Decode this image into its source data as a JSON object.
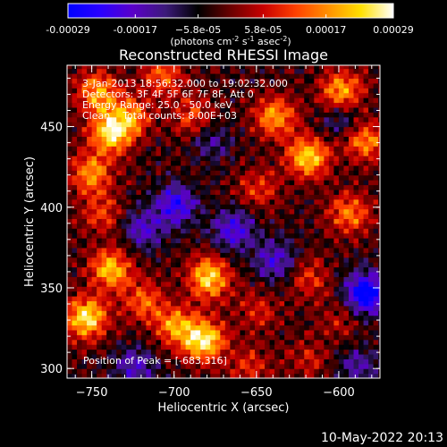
{
  "chart_data": {
    "type": "heatmap",
    "title": "Reconstructed RHESSI Image",
    "xlabel": "Heliocentric X (arcsec)",
    "ylabel": "Heliocentric Y (arcsec)",
    "xlim": [
      -765,
      -575
    ],
    "ylim": [
      294,
      488
    ],
    "x_ticks": [
      -750,
      -700,
      -650,
      -600
    ],
    "y_ticks": [
      300,
      350,
      400,
      450
    ],
    "colorbar": {
      "range": [
        -0.00029,
        0.00029
      ],
      "ticks": [
        -0.00029,
        -0.00017,
        -5.8e-05,
        5.8e-05,
        0.00017,
        0.00029
      ],
      "tick_labels": [
        "-0.00029",
        "-0.00017",
        "−5.8e-05",
        "5.8e-05",
        "0.00017",
        "0.00029"
      ],
      "unit_label_pre": "(photons cm",
      "unit_exp1": "-2",
      "unit_label_mid": " s",
      "unit_exp2": "-1",
      "unit_label_mid2": " asec",
      "unit_exp3": "-2",
      "unit_label_post": ")",
      "colormap": [
        "#0000ff",
        "#2a00ff",
        "#5a00c8",
        "#3c1a7a",
        "#000000",
        "#6a0000",
        "#c80000",
        "#ff4000",
        "#ff9000",
        "#ffe000",
        "#ffffff"
      ]
    },
    "annotations": {
      "line1": "3-Jan-2013 18:56:32.000 to 19:02:32.000",
      "line2": "Detectors: 3F 4F 5F 6F 7F 8F, Att 0",
      "line3": "Energy Range: 25.0 - 50.0 keV",
      "line4": "Clean    Total counts: 8.00E+03",
      "peak": "Position of Peak = [-683,316]"
    },
    "hotspots": [
      {
        "x": -748,
        "y": 470,
        "v": 0.00022
      },
      {
        "x": -740,
        "y": 445,
        "v": 0.00027
      },
      {
        "x": -752,
        "y": 420,
        "v": 0.0002
      },
      {
        "x": -728,
        "y": 455,
        "v": 0.00018
      },
      {
        "x": -708,
        "y": 480,
        "v": 0.00016
      },
      {
        "x": -690,
        "y": 455,
        "v": 0.00014
      },
      {
        "x": -640,
        "y": 455,
        "v": 0.00021
      },
      {
        "x": -620,
        "y": 430,
        "v": 0.00026
      },
      {
        "x": -600,
        "y": 470,
        "v": 0.00024
      },
      {
        "x": -585,
        "y": 440,
        "v": 0.0002
      },
      {
        "x": -650,
        "y": 410,
        "v": 0.00012
      },
      {
        "x": -595,
        "y": 395,
        "v": 0.00018
      },
      {
        "x": -740,
        "y": 360,
        "v": 0.00024
      },
      {
        "x": -755,
        "y": 330,
        "v": 0.00028
      },
      {
        "x": -720,
        "y": 340,
        "v": 0.00016
      },
      {
        "x": -680,
        "y": 355,
        "v": 0.00027
      },
      {
        "x": -683,
        "y": 316,
        "v": 0.00029
      },
      {
        "x": -700,
        "y": 325,
        "v": 0.0002
      },
      {
        "x": -650,
        "y": 335,
        "v": 0.0001
      },
      {
        "x": -620,
        "y": 355,
        "v": 0.00012
      },
      {
        "x": -600,
        "y": 330,
        "v": 8e-05
      },
      {
        "x": -655,
        "y": 300,
        "v": 0.00011
      },
      {
        "x": -620,
        "y": 305,
        "v": 9e-05
      },
      {
        "x": -745,
        "y": 395,
        "v": 0.00013
      }
    ],
    "coldspots": [
      {
        "x": -700,
        "y": 400,
        "v": -0.0002
      },
      {
        "x": -665,
        "y": 385,
        "v": -0.00018
      },
      {
        "x": -720,
        "y": 385,
        "v": -0.00015
      },
      {
        "x": -585,
        "y": 345,
        "v": -0.00029
      },
      {
        "x": -640,
        "y": 365,
        "v": -0.00016
      },
      {
        "x": -600,
        "y": 455,
        "v": -0.00012
      },
      {
        "x": -680,
        "y": 440,
        "v": -0.0001
      },
      {
        "x": -725,
        "y": 300,
        "v": -0.00014
      },
      {
        "x": -590,
        "y": 300,
        "v": -0.00012
      }
    ]
  },
  "footer": {
    "timestamp": "10-May-2022 20:13"
  }
}
